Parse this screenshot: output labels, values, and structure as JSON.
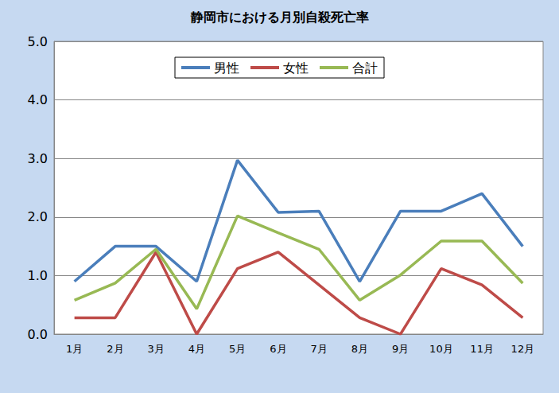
{
  "chart_data": {
    "type": "line",
    "title": "静岡市における月別自殺死亡率",
    "categories": [
      "1月",
      "2月",
      "3月",
      "4月",
      "5月",
      "6月",
      "7月",
      "8月",
      "9月",
      "10月",
      "11月",
      "12月"
    ],
    "series": [
      {
        "name": "男性",
        "color": "#4a7ebb",
        "values": [
          0.9,
          1.5,
          1.5,
          0.9,
          2.97,
          2.08,
          2.1,
          0.9,
          2.1,
          2.1,
          2.4,
          1.5
        ]
      },
      {
        "name": "女性",
        "color": "#be4b48",
        "values": [
          0.28,
          0.28,
          1.4,
          0.0,
          1.12,
          1.4,
          0.84,
          0.28,
          0.0,
          1.12,
          0.84,
          0.28
        ]
      },
      {
        "name": "合計",
        "color": "#98b954",
        "values": [
          0.58,
          0.87,
          1.45,
          0.43,
          2.02,
          1.73,
          1.45,
          0.58,
          1.01,
          1.59,
          1.59,
          0.87
        ]
      }
    ],
    "ylim": [
      0,
      5
    ],
    "yticks": [
      {
        "value": 0,
        "label": "0.0"
      },
      {
        "value": 1,
        "label": "1.0"
      },
      {
        "value": 2,
        "label": "2.0"
      },
      {
        "value": 3,
        "label": "3.0"
      },
      {
        "value": 4,
        "label": "4.0"
      },
      {
        "value": 5,
        "label": "5.0"
      }
    ],
    "grid": true,
    "legend": "top"
  }
}
